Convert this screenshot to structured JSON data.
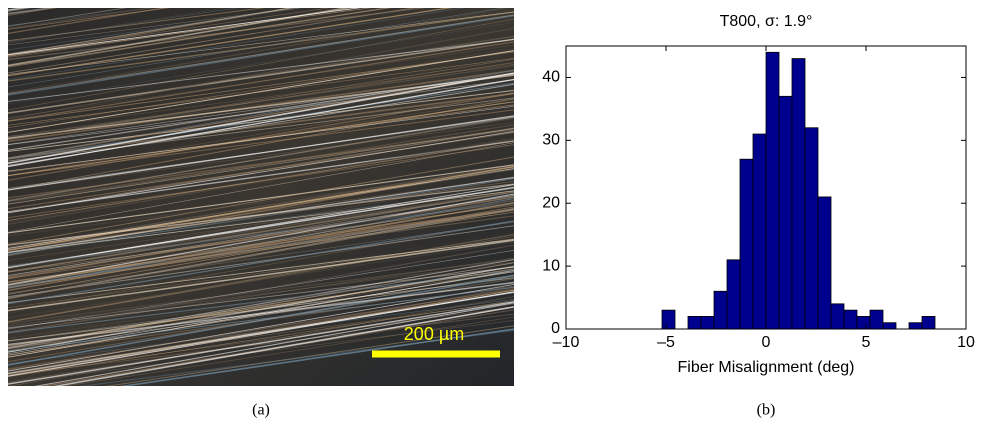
{
  "image": {
    "scale_bar_label": "200 µm",
    "caption": "(a)"
  },
  "chart_data": {
    "type": "histogram",
    "title": "T800, σ: 1.9°",
    "caption": "(b)",
    "x_label": "Fiber Misalignment (deg)",
    "bins": [
      -5.2,
      -4.55,
      -3.9,
      -3.25,
      -2.6,
      -1.95,
      -1.3,
      -0.65,
      0,
      0.65,
      1.3,
      1.95,
      2.6,
      3.25,
      3.9,
      4.55,
      5.2,
      5.85,
      6.5,
      7.15,
      7.8,
      8.45
    ],
    "values": [
      3,
      0,
      2,
      2,
      6,
      11,
      27,
      31,
      44,
      37,
      43,
      32,
      21,
      4,
      3,
      2,
      3,
      1,
      0,
      1,
      2
    ],
    "color": "#00008f",
    "xlim": [
      -10,
      10
    ],
    "xticks": [
      {
        "value": -10,
        "label": "–10"
      },
      {
        "value": -5,
        "label": "–5"
      },
      0,
      5,
      10
    ],
    "ylim": [
      0,
      45
    ],
    "yticks": [
      0,
      10,
      20,
      30,
      40
    ]
  }
}
